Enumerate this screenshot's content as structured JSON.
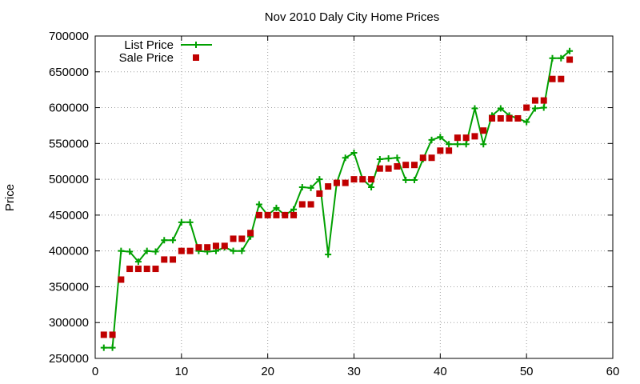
{
  "chart_data": {
    "type": "line",
    "title": "Nov 2010 Daly City Home Prices",
    "xlabel": "",
    "ylabel": "Price",
    "xlim": [
      0,
      60
    ],
    "ylim": [
      250000,
      700000
    ],
    "xticks": [
      0,
      10,
      20,
      30,
      40,
      50,
      60
    ],
    "yticks": [
      250000,
      300000,
      350000,
      400000,
      450000,
      500000,
      550000,
      600000,
      650000,
      700000
    ],
    "grid": true,
    "legend_position": "top-left",
    "series": [
      {
        "name": "List Price",
        "style": "line-with-plus-markers",
        "color": "#00a000",
        "x": [
          1,
          2,
          3,
          4,
          5,
          6,
          7,
          8,
          9,
          10,
          11,
          12,
          13,
          14,
          15,
          16,
          17,
          18,
          19,
          20,
          21,
          22,
          23,
          24,
          25,
          26,
          27,
          28,
          29,
          30,
          31,
          32,
          33,
          34,
          35,
          36,
          37,
          38,
          39,
          40,
          41,
          42,
          43,
          44,
          45,
          46,
          47,
          48,
          49,
          50,
          51,
          52,
          53,
          54,
          55
        ],
        "y": [
          265000,
          265000,
          400000,
          399000,
          385000,
          400000,
          399000,
          415000,
          415000,
          440000,
          440000,
          400000,
          399000,
          400000,
          405000,
          400000,
          400000,
          420000,
          465000,
          450000,
          460000,
          450000,
          458000,
          489000,
          488000,
          500000,
          395000,
          495000,
          530000,
          537000,
          500000,
          489000,
          528000,
          529000,
          530000,
          499000,
          499000,
          528000,
          555000,
          559000,
          549000,
          549000,
          549000,
          599000,
          549000,
          589000,
          599000,
          589000,
          585000,
          580000,
          599000,
          600000,
          669000,
          669000,
          679000
        ]
      },
      {
        "name": "Sale Price",
        "style": "square-markers",
        "color": "#c00000",
        "x": [
          1,
          2,
          3,
          4,
          5,
          6,
          7,
          8,
          9,
          10,
          11,
          12,
          13,
          14,
          15,
          16,
          17,
          18,
          19,
          20,
          21,
          22,
          23,
          24,
          25,
          26,
          27,
          28,
          29,
          30,
          31,
          32,
          33,
          34,
          35,
          36,
          37,
          38,
          39,
          40,
          41,
          42,
          43,
          44,
          45,
          46,
          47,
          48,
          49,
          50,
          51,
          52,
          53,
          54,
          55
        ],
        "y": [
          283000,
          283000,
          360000,
          375000,
          375000,
          375000,
          375000,
          388000,
          388000,
          400000,
          400000,
          405000,
          405000,
          407000,
          407000,
          417000,
          417000,
          425000,
          450000,
          450000,
          450000,
          450000,
          450000,
          465000,
          465000,
          480000,
          490000,
          495000,
          495000,
          500000,
          500000,
          500000,
          515000,
          515000,
          518000,
          520000,
          520000,
          530000,
          530000,
          540000,
          540000,
          558000,
          558000,
          560000,
          568000,
          585000,
          585000,
          585000,
          585000,
          600000,
          610000,
          610000,
          640000,
          640000,
          667000
        ]
      }
    ]
  }
}
